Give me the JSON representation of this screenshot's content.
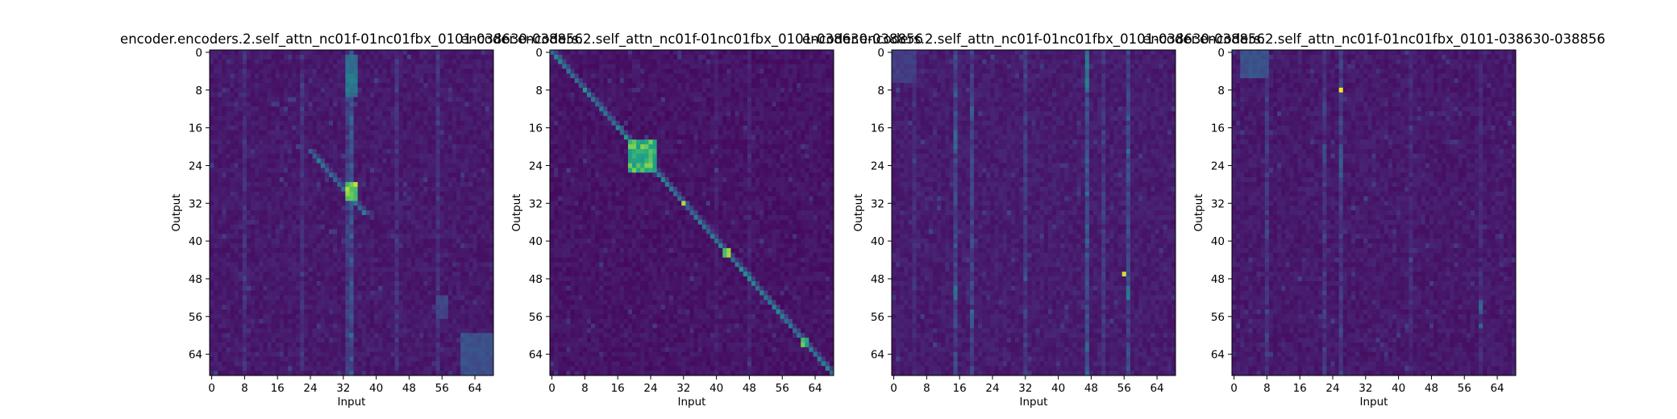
{
  "figure": {
    "background": "#ffffff",
    "colormap": "viridis"
  },
  "chart_data": [
    {
      "type": "heatmap",
      "title": "encoder.encoders.2.self_attn_nc01f-01nc01fbx_0101-038630-038856",
      "xlabel": "Input",
      "ylabel": "Output",
      "grid": false,
      "xlim": [
        0,
        69
      ],
      "ylim": [
        69,
        0
      ],
      "size": [
        69,
        69
      ],
      "xticks": [
        0,
        8,
        16,
        24,
        32,
        40,
        48,
        56,
        64
      ],
      "yticks": [
        0,
        8,
        16,
        24,
        32,
        40,
        48,
        56,
        64
      ],
      "pattern": {
        "base": 0.05,
        "diagonal": {
          "from": 21,
          "to": 34,
          "offset": 3,
          "strength": 0.45
        },
        "columns": [
          {
            "col": 34,
            "strength": 0.35
          },
          {
            "col": 33,
            "strength": 0.18
          },
          {
            "col": 8,
            "strength": 0.12
          },
          {
            "col": 22,
            "strength": 0.12
          },
          {
            "col": 45,
            "strength": 0.12
          },
          {
            "col": 55,
            "strength": 0.12
          }
        ],
        "blocks": [
          {
            "rows": [
              28,
              31
            ],
            "cols": [
              33,
              35
            ],
            "strength": 0.95
          },
          {
            "rows": [
              1,
              9
            ],
            "cols": [
              33,
              35
            ],
            "strength": 0.55
          },
          {
            "rows": [
              60,
              68
            ],
            "cols": [
              61,
              68
            ],
            "strength": 0.35
          },
          {
            "rows": [
              52,
              56
            ],
            "cols": [
              55,
              57
            ],
            "strength": 0.3
          }
        ]
      }
    },
    {
      "type": "heatmap",
      "title": "encoder.encoders.2.self_attn_nc01f-01nc01fbx_0101-038630-038856",
      "xlabel": "Input",
      "ylabel": "Output",
      "grid": false,
      "xlim": [
        0,
        69
      ],
      "ylim": [
        69,
        0
      ],
      "size": [
        69,
        69
      ],
      "xticks": [
        0,
        8,
        16,
        24,
        32,
        40,
        48,
        56,
        64
      ],
      "yticks": [
        0,
        8,
        16,
        24,
        32,
        40,
        48,
        56,
        64
      ],
      "pattern": {
        "base": 0.03,
        "diagonal": {
          "from": 0,
          "to": 68,
          "offset": 0,
          "strength": 0.55
        },
        "columns": [
          {
            "col": 48,
            "strength": 0.07
          },
          {
            "col": 40,
            "strength": 0.05
          }
        ],
        "blocks": [
          {
            "rows": [
              19,
              25
            ],
            "cols": [
              19,
              25
            ],
            "strength": 0.9
          },
          {
            "rows": [
              32,
              32
            ],
            "cols": [
              32,
              32
            ],
            "strength": 0.95
          },
          {
            "rows": [
              42,
              43
            ],
            "cols": [
              42,
              43
            ],
            "strength": 0.95
          },
          {
            "rows": [
              61,
              62
            ],
            "cols": [
              61,
              62
            ],
            "strength": 0.9
          },
          {
            "rows": [
              8,
              8
            ],
            "cols": [
              8,
              8
            ],
            "strength": 0.85
          }
        ]
      }
    },
    {
      "type": "heatmap",
      "title": "encoder.encoders.2.self_attn_nc01f-01nc01fbx_0101-038630-038856",
      "xlabel": "Input",
      "ylabel": "Output",
      "grid": false,
      "xlim": [
        0,
        69
      ],
      "ylim": [
        69,
        0
      ],
      "size": [
        69,
        69
      ],
      "xticks": [
        0,
        8,
        16,
        24,
        32,
        40,
        48,
        56,
        64
      ],
      "yticks": [
        0,
        8,
        16,
        24,
        32,
        40,
        48,
        56,
        64
      ],
      "pattern": {
        "base": 0.06,
        "diagonal": null,
        "columns": [
          {
            "col": 47,
            "strength": 0.3
          },
          {
            "col": 57,
            "strength": 0.25
          },
          {
            "col": 15,
            "strength": 0.22
          },
          {
            "col": 19,
            "strength": 0.2
          },
          {
            "col": 51,
            "strength": 0.15
          },
          {
            "col": 32,
            "strength": 0.15
          },
          {
            "col": 5,
            "strength": 0.08
          }
        ],
        "blocks": [
          {
            "rows": [
              47,
              47
            ],
            "cols": [
              56,
              56
            ],
            "strength": 1.0
          },
          {
            "rows": [
              0,
              8
            ],
            "cols": [
              47,
              47
            ],
            "strength": 0.55
          },
          {
            "rows": [
              50,
              52
            ],
            "cols": [
              57,
              57
            ],
            "strength": 0.6
          },
          {
            "rows": [
              50,
              52
            ],
            "cols": [
              15,
              15
            ],
            "strength": 0.55
          },
          {
            "rows": [
              17,
              20
            ],
            "cols": [
              15,
              15
            ],
            "strength": 0.5
          },
          {
            "rows": [
              12,
              14
            ],
            "cols": [
              19,
              19
            ],
            "strength": 0.45
          },
          {
            "rows": [
              55,
              58
            ],
            "cols": [
              19,
              19
            ],
            "strength": 0.45
          },
          {
            "rows": [
              0,
              6
            ],
            "cols": [
              0,
              5
            ],
            "strength": 0.25
          }
        ]
      }
    },
    {
      "type": "heatmap",
      "title": "encoder.encoders.2.self_attn_nc01f-01nc01fbx_0101-038630-038856",
      "xlabel": "Input",
      "ylabel": "Output",
      "grid": false,
      "xlim": [
        0,
        69
      ],
      "ylim": [
        69,
        0
      ],
      "size": [
        69,
        69
      ],
      "xticks": [
        0,
        8,
        16,
        24,
        32,
        40,
        48,
        56,
        64
      ],
      "yticks": [
        0,
        8,
        16,
        24,
        32,
        40,
        48,
        56,
        64
      ],
      "pattern": {
        "base": 0.05,
        "diagonal": null,
        "columns": [
          {
            "col": 8,
            "strength": 0.15
          },
          {
            "col": 26,
            "strength": 0.18
          },
          {
            "col": 22,
            "strength": 0.15
          },
          {
            "col": 43,
            "strength": 0.08
          },
          {
            "col": 60,
            "strength": 0.08
          }
        ],
        "blocks": [
          {
            "rows": [
              8,
              8
            ],
            "cols": [
              26,
              26
            ],
            "strength": 1.0
          },
          {
            "rows": [
              0,
              5
            ],
            "cols": [
              2,
              8
            ],
            "strength": 0.35
          },
          {
            "rows": [
              20,
              26
            ],
            "cols": [
              26,
              26
            ],
            "strength": 0.4
          },
          {
            "rows": [
              20,
              23
            ],
            "cols": [
              22,
              22
            ],
            "strength": 0.35
          },
          {
            "rows": [
              53,
              55
            ],
            "cols": [
              60,
              60
            ],
            "strength": 0.45
          },
          {
            "rows": [
              58,
              58
            ],
            "cols": [
              60,
              60
            ],
            "strength": 0.5
          }
        ]
      }
    }
  ]
}
